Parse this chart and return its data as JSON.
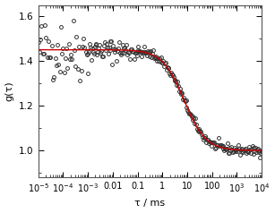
{
  "tau_diff_ms": 7.4,
  "G0": 0.45,
  "background": 1.0,
  "xlim": [
    1e-05,
    10000.0
  ],
  "ylim": [
    0.88,
    1.65
  ],
  "yticks": [
    1.0,
    1.2,
    1.4,
    1.6
  ],
  "xtick_locs": [
    1e-05,
    0.0001,
    0.001,
    0.01,
    0.1,
    1,
    10,
    100,
    1000,
    10000
  ],
  "xtick_labels": [
    "10$^{-5}$",
    "10$^{-4}$",
    "10$^{-3}$",
    "0.01",
    "0.1",
    "1",
    "10",
    "100",
    "10$^{3}$",
    "10$^{4}$"
  ],
  "xlabel": "τ / ms",
  "ylabel": "g(τ)",
  "data_color": "#333333",
  "fit_color": "#cc0000",
  "marker_size": 2.8,
  "marker_edge_width": 0.7,
  "line_width": 1.0,
  "noise_seed": 42,
  "figsize": [
    3.07,
    2.38
  ],
  "dpi": 100
}
